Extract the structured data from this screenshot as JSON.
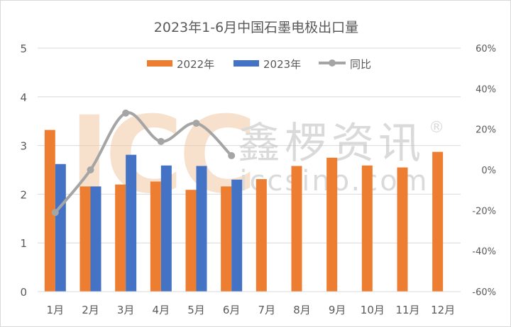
{
  "chart_data": {
    "type": "bar",
    "title": "2023年1-6月中国石墨电极出口量",
    "categories": [
      "1月",
      "2月",
      "3月",
      "4月",
      "5月",
      "6月",
      "7月",
      "8月",
      "9月",
      "10月",
      "11月",
      "12月"
    ],
    "series": [
      {
        "name": "2022年",
        "type": "bar",
        "axis": "left",
        "color": "#ED7D31",
        "values": [
          3.32,
          2.16,
          2.2,
          2.26,
          2.09,
          2.16,
          2.31,
          2.58,
          2.75,
          2.59,
          2.55,
          2.87
        ]
      },
      {
        "name": "2023年",
        "type": "bar",
        "axis": "left",
        "color": "#4472C4",
        "values": [
          2.62,
          2.16,
          2.81,
          2.59,
          2.58,
          2.3,
          null,
          null,
          null,
          null,
          null,
          null
        ]
      },
      {
        "name": "同比",
        "type": "line",
        "axis": "right",
        "color": "#A5A5A5",
        "values": [
          -21,
          0,
          28,
          14,
          23,
          7,
          null,
          null,
          null,
          null,
          null,
          null
        ]
      }
    ],
    "ylim": [
      0,
      5
    ],
    "y_ticks": [
      "0",
      "1",
      "2",
      "3",
      "4",
      "5"
    ],
    "y2lim": [
      -60,
      60
    ],
    "y2_ticks": [
      "-60%",
      "-40%",
      "-20%",
      "0%",
      "20%",
      "40%",
      "60%"
    ],
    "grid": true,
    "legend": "top-center"
  },
  "watermark": {
    "logo": "ICC",
    "name": "鑫椤资讯",
    "site": "iccsino.com",
    "mark": "®"
  }
}
